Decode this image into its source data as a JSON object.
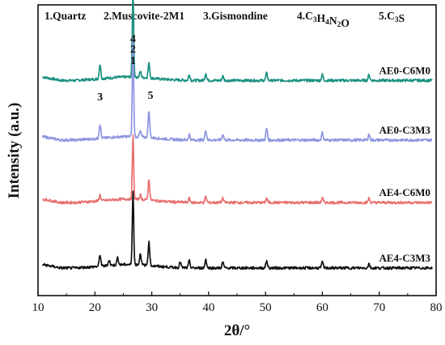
{
  "chart_data": {
    "type": "line",
    "xlabel": "2θ/°",
    "ylabel": "Intensity (a.u.)",
    "xlim": [
      10,
      80
    ],
    "x_ticks": [
      "10",
      "20",
      "30",
      "40",
      "50",
      "60",
      "70",
      "80"
    ],
    "grid": false,
    "phase_legend": [
      {
        "id": "1",
        "text": "1.Quartz"
      },
      {
        "id": "2",
        "text": "2.Muscovite-2M1"
      },
      {
        "id": "3",
        "text": "3.Gismondine"
      },
      {
        "id": "4",
        "text": "4.C",
        "sub1": "3",
        "mid1": "H",
        "sub2": "4",
        "mid2": "N",
        "sub3": "2",
        "end": "O"
      },
      {
        "id": "5",
        "text": "5.C",
        "sub1": "3",
        "end": "S"
      }
    ],
    "peak_labels": [
      {
        "text": "4",
        "x": 26.7
      },
      {
        "text": "2",
        "x": 26.7
      },
      {
        "text": "1",
        "x": 26.7
      },
      {
        "text": "3",
        "x": 20.9
      },
      {
        "text": "5",
        "x": 29.5
      }
    ],
    "series": [
      {
        "name": "AE0-C6M0",
        "color": "#1a9080",
        "baseline": 0.74,
        "peaks": [
          [
            20.9,
            0.05
          ],
          [
            26.7,
            0.3
          ],
          [
            28.0,
            0.02
          ],
          [
            29.5,
            0.05
          ],
          [
            36.6,
            0.02
          ],
          [
            39.5,
            0.025
          ],
          [
            42.5,
            0.015
          ],
          [
            50.2,
            0.025
          ],
          [
            60.0,
            0.02
          ],
          [
            68.2,
            0.02
          ]
        ]
      },
      {
        "name": "AE0-C3M3",
        "color": "#8e96e0",
        "baseline": 0.535,
        "peaks": [
          [
            20.9,
            0.05
          ],
          [
            26.7,
            0.34
          ],
          [
            28.0,
            0.02
          ],
          [
            29.5,
            0.09
          ],
          [
            36.6,
            0.02
          ],
          [
            39.5,
            0.035
          ],
          [
            42.5,
            0.02
          ],
          [
            50.2,
            0.04
          ],
          [
            60.0,
            0.025
          ],
          [
            68.2,
            0.02
          ]
        ]
      },
      {
        "name": "AE4-C6M0",
        "color": "#e87070",
        "baseline": 0.32,
        "peaks": [
          [
            20.9,
            0.02
          ],
          [
            26.7,
            0.22
          ],
          [
            28.0,
            0.015
          ],
          [
            29.5,
            0.07
          ],
          [
            36.6,
            0.015
          ],
          [
            39.5,
            0.02
          ],
          [
            42.5,
            0.015
          ],
          [
            50.2,
            0.015
          ],
          [
            60.0,
            0.015
          ],
          [
            68.2,
            0.015
          ]
        ]
      },
      {
        "name": "AE4-C3M3",
        "color": "#111111",
        "baseline": 0.095,
        "peaks": [
          [
            20.9,
            0.04
          ],
          [
            22.5,
            0.02
          ],
          [
            24.0,
            0.025
          ],
          [
            26.7,
            0.26
          ],
          [
            28.0,
            0.04
          ],
          [
            29.5,
            0.08
          ],
          [
            35.0,
            0.02
          ],
          [
            36.6,
            0.025
          ],
          [
            39.5,
            0.03
          ],
          [
            42.5,
            0.02
          ],
          [
            50.2,
            0.025
          ],
          [
            60.0,
            0.02
          ],
          [
            68.2,
            0.015
          ]
        ]
      }
    ]
  }
}
